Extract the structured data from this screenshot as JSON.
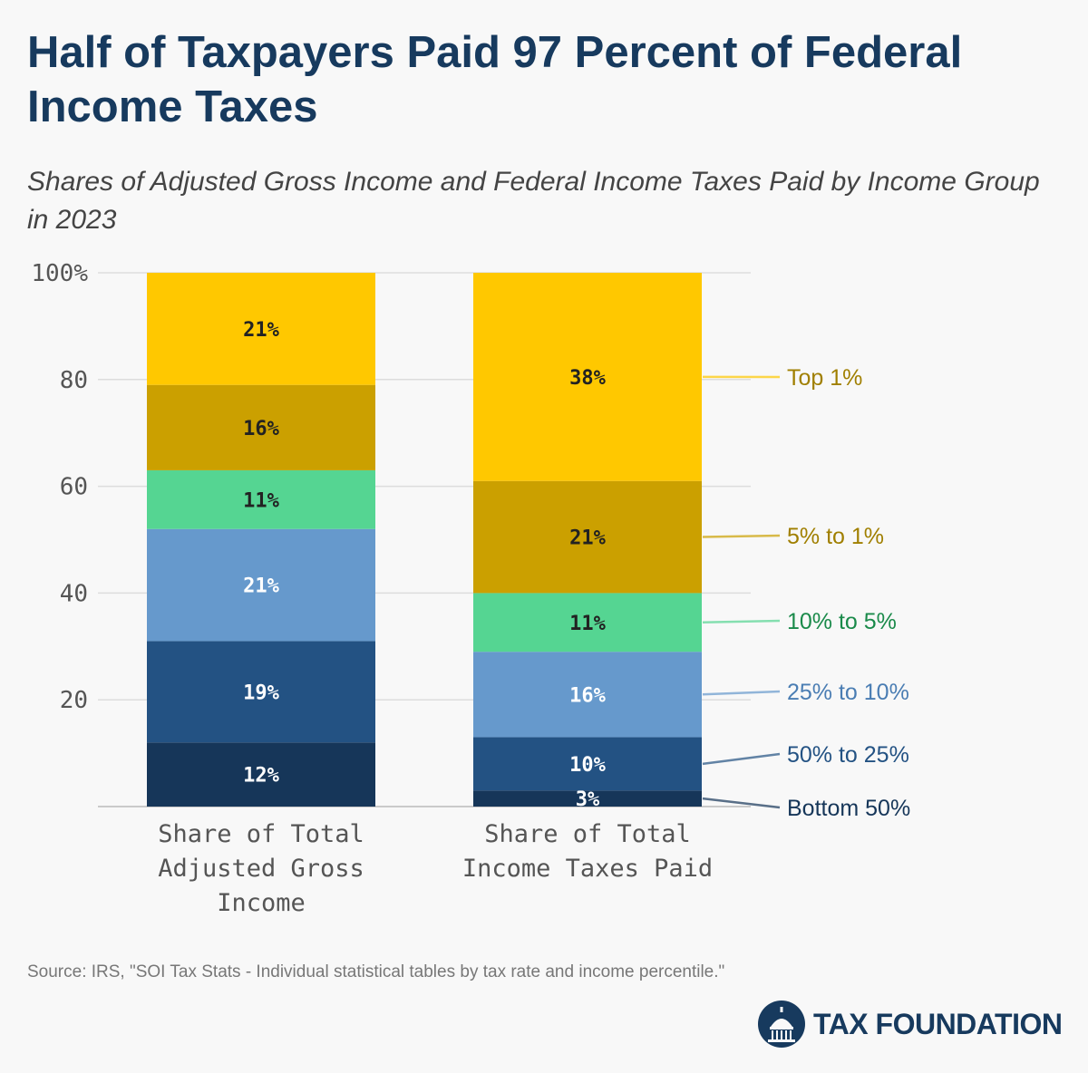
{
  "title": "Half of Taxpayers Paid 97 Percent of Federal Income Taxes",
  "subtitle": "Shares of Adjusted Gross Income and Federal Income Taxes Paid by Income Group in 2023",
  "source": "Source: IRS, \"SOI Tax Stats - Individual statistical tables by tax rate and income percentile.\"",
  "brand": "TAX FOUNDATION",
  "chart_data": {
    "type": "bar",
    "stacked": true,
    "categories": [
      "Share of Total Adjusted Gross Income",
      "Share of Total Income Taxes Paid"
    ],
    "category_lines": [
      [
        "Share of Total",
        "Adjusted Gross",
        "Income"
      ],
      [
        "Share of Total",
        "Income Taxes Paid"
      ]
    ],
    "ylim": [
      0,
      100
    ],
    "yticks": [
      {
        "value": 0,
        "label": ""
      },
      {
        "value": 20,
        "label": "20"
      },
      {
        "value": 40,
        "label": "40"
      },
      {
        "value": 60,
        "label": "60"
      },
      {
        "value": 80,
        "label": "80"
      },
      {
        "value": 100,
        "label": "100%"
      }
    ],
    "grid": true,
    "legend_placement": "right",
    "series": [
      {
        "name": "Bottom 50%",
        "color": "#163659",
        "label_color": "#163659",
        "values": [
          12,
          3
        ],
        "labels": [
          "12%",
          "3%"
        ]
      },
      {
        "name": "50% to 25%",
        "color": "#235283",
        "label_color": "#235283",
        "values": [
          19,
          10
        ],
        "labels": [
          "19%",
          "10%"
        ]
      },
      {
        "name": "25% to 10%",
        "color": "#6699cc",
        "label_color": "#4a7db3",
        "values": [
          21,
          16
        ],
        "labels": [
          "21%",
          "16%"
        ]
      },
      {
        "name": "10% to 5%",
        "color": "#55d592",
        "label_color": "#1a8a4a",
        "values": [
          11,
          11
        ],
        "labels": [
          "11%",
          "11%"
        ]
      },
      {
        "name": "5% to 1%",
        "color": "#cba000",
        "label_color": "#a07f00",
        "values": [
          16,
          21
        ],
        "labels": [
          "16%",
          "21%"
        ]
      },
      {
        "name": "Top 1%",
        "color": "#ffc800",
        "label_color": "#a07f00",
        "values": [
          21,
          38
        ],
        "labels": [
          "21%",
          "38%"
        ]
      }
    ]
  }
}
